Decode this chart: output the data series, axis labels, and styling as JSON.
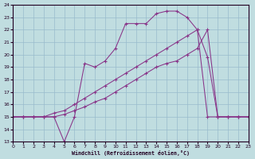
{
  "xlabel": "Windchill (Refroidissement éolien,°C)",
  "background_color": "#c0dde0",
  "grid_color": "#99bbcc",
  "line_color": "#883388",
  "xlim": [
    0,
    23
  ],
  "ylim": [
    13,
    24
  ],
  "yticks": [
    13,
    14,
    15,
    16,
    17,
    18,
    19,
    20,
    21,
    22,
    23,
    24
  ],
  "xticks": [
    0,
    1,
    2,
    3,
    4,
    5,
    6,
    7,
    8,
    9,
    10,
    11,
    12,
    13,
    14,
    15,
    16,
    17,
    18,
    19,
    20,
    21,
    22,
    23
  ],
  "s1x": [
    0,
    1,
    2,
    3,
    4,
    5,
    6,
    7,
    8,
    9,
    10,
    11,
    12,
    13,
    14,
    15,
    16,
    17,
    18,
    19,
    20,
    21,
    22,
    23
  ],
  "s1y": [
    15,
    15,
    15,
    15,
    15,
    13.0,
    15.0,
    19.3,
    19.0,
    19.5,
    20.5,
    22.5,
    22.5,
    22.5,
    23.3,
    23.5,
    23.5,
    23.0,
    22.0,
    15.0,
    15.0,
    15.0,
    15.0,
    15.0
  ],
  "s2x": [
    0,
    1,
    2,
    3,
    4,
    5,
    6,
    7,
    8,
    9,
    10,
    11,
    12,
    13,
    14,
    15,
    16,
    17,
    18,
    19,
    20,
    21,
    22,
    23
  ],
  "s2y": [
    15,
    15,
    15,
    15,
    15.3,
    15.5,
    16.0,
    16.5,
    17.0,
    17.5,
    18.0,
    18.5,
    19.0,
    19.5,
    20.0,
    20.5,
    21.0,
    21.5,
    22.0,
    19.8,
    15.0,
    15.0,
    15.0,
    15.0
  ],
  "s3x": [
    0,
    1,
    2,
    3,
    4,
    5,
    6,
    7,
    8,
    9,
    10,
    11,
    12,
    13,
    14,
    15,
    16,
    17,
    18,
    19,
    20,
    21,
    22,
    23
  ],
  "s3y": [
    15,
    15,
    15,
    15,
    15,
    15.2,
    15.5,
    15.8,
    16.2,
    16.5,
    17.0,
    17.5,
    18.0,
    18.5,
    19.0,
    19.3,
    19.5,
    20.0,
    20.5,
    22.0,
    15.0,
    15.0,
    15.0,
    15.0
  ]
}
